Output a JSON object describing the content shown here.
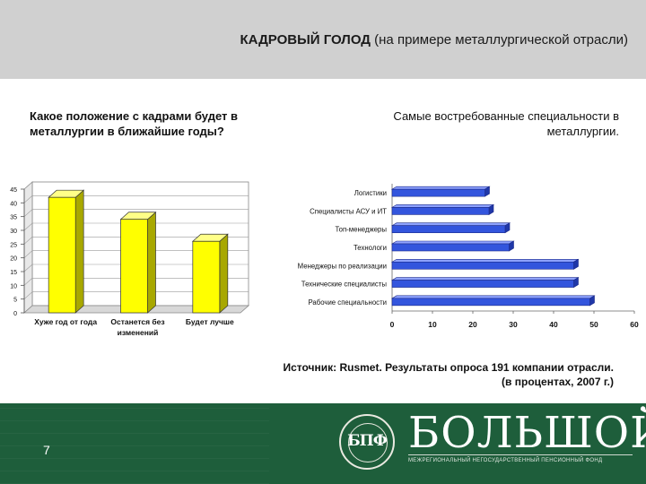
{
  "header": {
    "title_bold": "КАДРОВЫЙ ГОЛОД",
    "title_rest": " (на примере металлургической отрасли)"
  },
  "left_question": "Какое положение с кадрами будет в металлургии в ближайшие годы?",
  "right_question": "Самые востребованные специальности в металлургии.",
  "chart_data": [
    {
      "type": "bar",
      "title": "Какое положение с кадрами будет в металлургии в ближайшие годы?",
      "categories": [
        [
          "Хуже год от года"
        ],
        [
          "Останется без",
          "изменений"
        ],
        [
          "Будет лучше"
        ]
      ],
      "values": [
        42,
        34,
        26
      ],
      "ylim": [
        0,
        45
      ],
      "yticks": [
        0,
        5,
        10,
        15,
        20,
        25,
        30,
        35,
        40,
        45
      ],
      "color": "#ffff00",
      "grid": true,
      "unit": "%"
    },
    {
      "type": "bar",
      "orientation": "horizontal",
      "title": "Самые востребованные специальности в металлургии.",
      "categories": [
        "Логистики",
        "Специалисты АСУ и ИТ",
        "Топ-менеджеры",
        "Технологи",
        "Менеджеры по реализации",
        "Технические специалисты",
        "Рабочие специальности"
      ],
      "values": [
        23,
        24,
        28,
        29,
        45,
        45,
        49
      ],
      "xlim": [
        0,
        60
      ],
      "xticks": [
        0,
        10,
        20,
        30,
        40,
        50,
        60
      ],
      "color": "#3355dd",
      "unit": "%"
    }
  ],
  "source": {
    "line1": "Источник: Rusmet. Результаты опроса 191 компании отрасли.",
    "line2": "(в процентах, 2007 г.)"
  },
  "footer": {
    "page_number": "7",
    "brand_name": "БОЛЬШОЙ",
    "brand_subtitle": "МЕЖРЕГИОНАЛЬНЫЙ НЕГОСУДАРСТВЕННЫЙ ПЕНСИОННЫЙ ФОНД",
    "monogram": "БПФ",
    "colors": {
      "background": "#1e5e3b",
      "text": "#ffffff"
    }
  }
}
